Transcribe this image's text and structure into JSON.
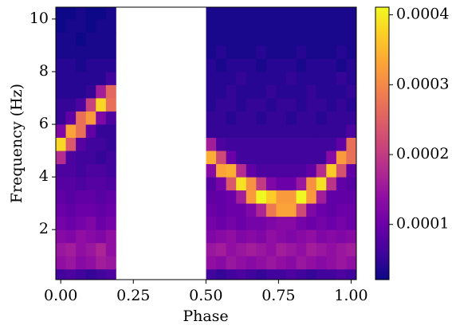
{
  "chart_data": {
    "type": "heatmap",
    "x_label": "Phase",
    "y_label": "Frequency (Hz)",
    "colormap": "plasma",
    "xbins": [
      -0.017,
      0.0175,
      0.052,
      0.0865,
      0.121,
      0.1555,
      0.19,
      0.2245,
      0.259,
      0.2935,
      0.328,
      0.3625,
      0.397,
      0.4315,
      0.466,
      0.5005,
      0.535,
      0.5695,
      0.604,
      0.6385,
      0.673,
      0.7075,
      0.742,
      0.7765,
      0.811,
      0.8455,
      0.88,
      0.9145,
      0.949,
      0.9835,
      1.018
    ],
    "ybins": [
      0,
      0.5,
      1,
      1.5,
      2,
      2.5,
      3,
      3.5,
      4,
      4.5,
      5,
      5.5,
      6,
      6.5,
      7,
      7.5,
      8,
      8.5,
      9,
      9.5,
      10,
      10.5
    ],
    "xlim": [
      -0.017,
      1.018
    ],
    "ylim": [
      0.1,
      10.45
    ],
    "xticks": [
      {
        "value": 0,
        "label": "0.00"
      },
      {
        "value": 0.25,
        "label": "0.25"
      },
      {
        "value": 0.5,
        "label": "0.50"
      },
      {
        "value": 0.75,
        "label": "0.75"
      },
      {
        "value": 1,
        "label": "1.00"
      }
    ],
    "yticks": [
      2,
      4,
      6,
      8,
      10
    ],
    "zlim": [
      2.1e-05,
      0.000411
    ],
    "zticks": [
      0.0001,
      0.0002,
      0.0003,
      0.0004
    ],
    "z": [
      [
        6e-05,
        7e-05,
        6e-05,
        5e-05,
        6e-05,
        7e-05,
        null,
        null,
        null,
        null,
        null,
        null,
        null,
        null,
        null,
        6e-05,
        5e-05,
        6e-05,
        7e-05,
        6e-05,
        5e-05,
        6e-05,
        6e-05,
        7e-05,
        6e-05,
        5e-05,
        6e-05,
        6e-05,
        7e-05,
        6e-05
      ],
      [
        0.00014,
        0.00015,
        0.00013,
        0.00014,
        0.00016,
        0.00015,
        null,
        null,
        null,
        null,
        null,
        null,
        null,
        null,
        null,
        0.00014,
        0.00013,
        0.00015,
        0.00014,
        0.00013,
        0.00014,
        0.00015,
        0.00014,
        0.00013,
        0.00015,
        0.00014,
        0.00013,
        0.00014,
        0.00015,
        0.00014
      ],
      [
        0.00015,
        0.00016,
        0.00014,
        0.00015,
        0.00017,
        0.00014,
        null,
        null,
        null,
        null,
        null,
        null,
        null,
        null,
        null,
        0.00015,
        0.00016,
        0.00014,
        0.00015,
        0.00016,
        0.00015,
        0.00014,
        0.00016,
        0.00015,
        0.00014,
        0.00016,
        0.00015,
        0.00014,
        0.00015,
        0.00016
      ],
      [
        0.00013,
        0.00012,
        0.00014,
        0.00013,
        0.00012,
        0.00014,
        null,
        null,
        null,
        null,
        null,
        null,
        null,
        null,
        null,
        0.00012,
        0.00013,
        0.00014,
        0.00012,
        0.00013,
        0.00012,
        0.00014,
        0.00013,
        0.00012,
        0.00013,
        0.00014,
        0.00012,
        0.00013,
        0.00012,
        0.00013
      ],
      [
        0.00011,
        0.0001,
        0.00011,
        0.00012,
        0.0001,
        0.00011,
        null,
        null,
        null,
        null,
        null,
        null,
        null,
        null,
        null,
        0.00011,
        0.0001,
        0.00011,
        0.0001,
        0.00011,
        0.00011,
        0.00012,
        0.00013,
        0.00013,
        0.00011,
        0.0001,
        0.00011,
        0.0001,
        0.00011,
        0.0001
      ],
      [
        0.0001,
        9e-05,
        0.0001,
        0.0001,
        9e-05,
        0.0001,
        null,
        null,
        null,
        null,
        null,
        null,
        null,
        null,
        null,
        0.0001,
        9e-05,
        0.0001,
        0.0001,
        0.00012,
        0.00017,
        0.00028,
        0.00033,
        0.00033,
        0.00022,
        0.00012,
        0.0001,
        9e-05,
        0.0001,
        0.0001
      ],
      [
        9e-05,
        8e-05,
        9e-05,
        9e-05,
        8e-05,
        9e-05,
        null,
        null,
        null,
        null,
        null,
        null,
        null,
        null,
        null,
        9e-05,
        9e-05,
        0.0001,
        0.00016,
        0.00032,
        0.00041,
        0.00037,
        0.00032,
        0.00032,
        0.00041,
        0.00032,
        0.00016,
        9e-05,
        9e-05,
        9e-05
      ],
      [
        8e-05,
        8e-05,
        7e-05,
        8e-05,
        8e-05,
        7e-05,
        null,
        null,
        null,
        null,
        null,
        null,
        null,
        null,
        null,
        8e-05,
        0.00011,
        0.00024,
        0.00039,
        0.00031,
        0.0002,
        0.00012,
        0.0001,
        0.0001,
        0.00015,
        0.00031,
        0.00039,
        0.00019,
        9e-05,
        8e-05
      ],
      [
        7e-05,
        7e-05,
        6e-05,
        7e-05,
        7e-05,
        6e-05,
        null,
        null,
        null,
        null,
        null,
        null,
        null,
        null,
        null,
        0.00013,
        0.00033,
        0.00034,
        0.00018,
        9e-05,
        7e-05,
        7e-05,
        7e-05,
        7e-05,
        7e-05,
        9e-05,
        0.00018,
        0.00037,
        0.00023,
        9e-05
      ],
      [
        0.00018,
        7e-05,
        6e-05,
        6e-05,
        5e-05,
        6e-05,
        null,
        null,
        null,
        null,
        null,
        null,
        null,
        null,
        null,
        0.00034,
        0.00022,
        0.0001,
        6e-05,
        6e-05,
        6e-05,
        6e-05,
        6e-05,
        6e-05,
        6e-05,
        6e-05,
        6e-05,
        0.00013,
        0.00032,
        0.00027
      ],
      [
        0.00038,
        0.00024,
        8e-05,
        6e-05,
        6e-05,
        5e-05,
        null,
        null,
        null,
        null,
        null,
        null,
        null,
        null,
        null,
        0.00016,
        7e-05,
        6e-05,
        6e-05,
        6e-05,
        6e-05,
        6e-05,
        6e-05,
        6e-05,
        6e-05,
        6e-05,
        6e-05,
        6e-05,
        9e-05,
        0.00027
      ],
      [
        0.00012,
        0.00033,
        0.00027,
        9e-05,
        5e-05,
        5e-05,
        null,
        null,
        null,
        null,
        null,
        null,
        null,
        null,
        null,
        5e-05,
        5e-05,
        5e-05,
        5e-05,
        5e-05,
        5e-05,
        5e-05,
        5e-05,
        5e-05,
        5e-05,
        5e-05,
        5e-05,
        5e-05,
        5e-05,
        7e-05
      ],
      [
        5e-05,
        9e-05,
        0.00027,
        0.00032,
        0.00012,
        7e-05,
        null,
        null,
        null,
        null,
        null,
        null,
        null,
        null,
        null,
        5e-05,
        5e-05,
        4e-05,
        5e-05,
        5e-05,
        4e-05,
        5e-05,
        5e-05,
        4e-05,
        5e-05,
        5e-05,
        4e-05,
        5e-05,
        5e-05,
        5e-05
      ],
      [
        5e-05,
        5e-05,
        7e-05,
        0.00021,
        0.00038,
        0.00027,
        null,
        null,
        null,
        null,
        null,
        null,
        null,
        null,
        null,
        4e-05,
        5e-05,
        5e-05,
        4e-05,
        5e-05,
        5e-05,
        4e-05,
        5e-05,
        5e-05,
        4e-05,
        5e-05,
        5e-05,
        4e-05,
        5e-05,
        4e-05
      ],
      [
        4e-05,
        4e-05,
        4e-05,
        5e-05,
        0.00016,
        0.00026,
        null,
        null,
        null,
        null,
        null,
        null,
        null,
        null,
        null,
        4e-05,
        4e-05,
        5e-05,
        4e-05,
        4e-05,
        4e-05,
        5e-05,
        4e-05,
        4e-05,
        4e-05,
        5e-05,
        4e-05,
        4e-05,
        4e-05,
        5e-05
      ],
      [
        4e-05,
        4e-05,
        4e-05,
        4e-05,
        4e-05,
        6e-05,
        null,
        null,
        null,
        null,
        null,
        null,
        null,
        null,
        null,
        4e-05,
        4e-05,
        4e-05,
        5e-05,
        4e-05,
        4e-05,
        4e-05,
        4e-05,
        5e-05,
        4e-05,
        4e-05,
        4e-05,
        4e-05,
        5e-05,
        4e-05
      ],
      [
        4e-05,
        4e-05,
        3e-05,
        4e-05,
        4e-05,
        4e-05,
        null,
        null,
        null,
        null,
        null,
        null,
        null,
        null,
        null,
        4e-05,
        3e-05,
        4e-05,
        4e-05,
        4e-05,
        3e-05,
        4e-05,
        4e-05,
        4e-05,
        3e-05,
        4e-05,
        4e-05,
        4e-05,
        3e-05,
        4e-05
      ],
      [
        3e-05,
        3e-05,
        3e-05,
        3e-05,
        3e-05,
        3e-05,
        null,
        null,
        null,
        null,
        null,
        null,
        null,
        null,
        null,
        3e-05,
        4e-05,
        3e-05,
        3e-05,
        3e-05,
        4e-05,
        3e-05,
        3e-05,
        3e-05,
        4e-05,
        3e-05,
        3e-05,
        3e-05,
        4e-05,
        3e-05
      ],
      [
        3e-05,
        3e-05,
        2e-05,
        3e-05,
        3e-05,
        3e-05,
        null,
        null,
        null,
        null,
        null,
        null,
        null,
        null,
        null,
        3e-05,
        3e-05,
        3e-05,
        3e-05,
        3e-05,
        3e-05,
        3e-05,
        3e-05,
        3e-05,
        3e-05,
        3e-05,
        3e-05,
        3e-05,
        3e-05,
        3e-05
      ],
      [
        2e-05,
        3e-05,
        3e-05,
        2e-05,
        3e-05,
        3e-05,
        null,
        null,
        null,
        null,
        null,
        null,
        null,
        null,
        null,
        3e-05,
        3e-05,
        3e-05,
        3e-05,
        3e-05,
        3e-05,
        3e-05,
        3e-05,
        3e-05,
        3e-05,
        3e-05,
        3e-05,
        3e-05,
        3e-05,
        3e-05
      ],
      [
        2e-05,
        2e-05,
        3e-05,
        2e-05,
        2e-05,
        3e-05,
        null,
        null,
        null,
        null,
        null,
        null,
        null,
        null,
        null,
        3e-05,
        3e-05,
        3e-05,
        3e-05,
        3e-05,
        3e-05,
        3e-05,
        3e-05,
        3e-05,
        3e-05,
        3e-05,
        3e-05,
        3e-05,
        3e-05,
        3e-05
      ]
    ]
  }
}
